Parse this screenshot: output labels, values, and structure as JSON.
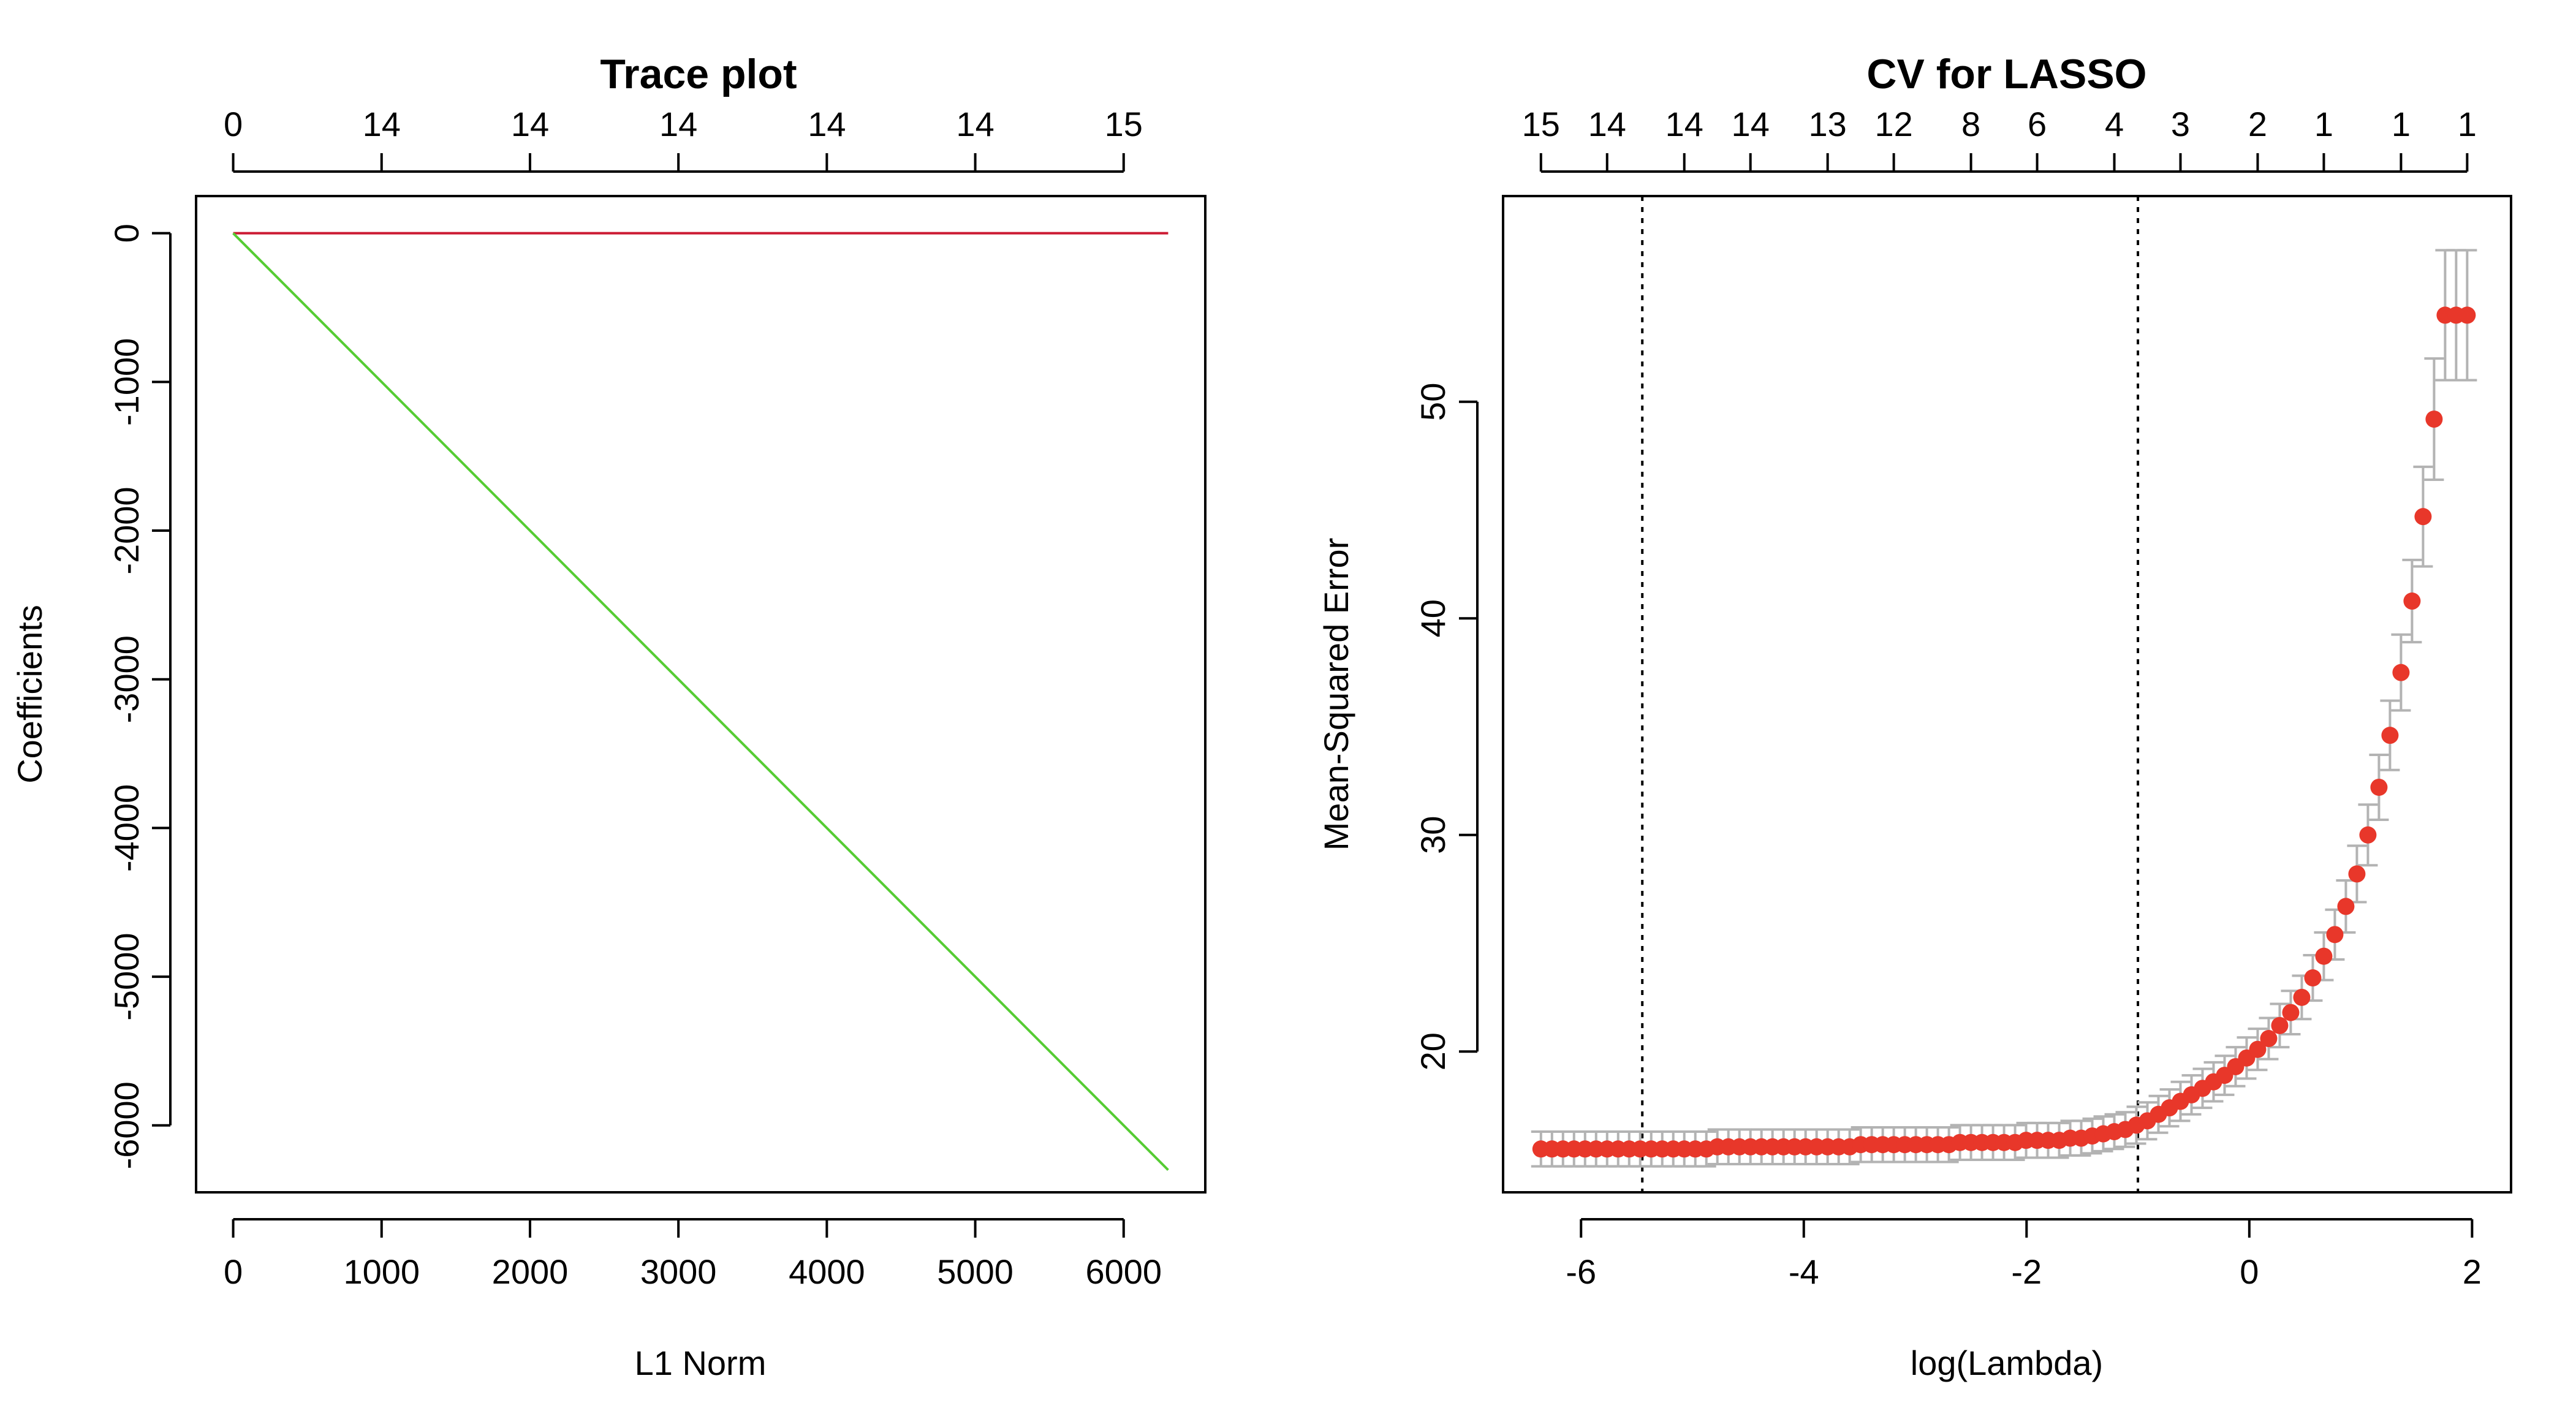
{
  "chart_data": [
    {
      "type": "line",
      "title": "Trace plot",
      "xlabel": "L1 Norm",
      "ylabel": "Coefficients",
      "xlim": [
        -250,
        6550
      ],
      "ylim": [
        -6450,
        250
      ],
      "x_ticks": [
        0,
        1000,
        2000,
        3000,
        4000,
        5000,
        6000
      ],
      "y_ticks": [
        0,
        -1000,
        -2000,
        -3000,
        -4000,
        -5000,
        -6000
      ],
      "top_axis": {
        "at": [
          0,
          1000,
          2000,
          3000,
          4000,
          5000,
          6000
        ],
        "labels": [
          "0",
          "14",
          "14",
          "14",
          "14",
          "14",
          "15"
        ]
      },
      "grid": false,
      "series": [
        {
          "color": "#cc1a33",
          "x": [
            0,
            6300
          ],
          "y": [
            0,
            0
          ]
        },
        {
          "color": "#55cc33",
          "x": [
            0,
            6300
          ],
          "y": [
            0,
            -6300
          ]
        }
      ]
    },
    {
      "type": "scatter",
      "title": "CV for LASSO",
      "xlabel": "log(Lambda)",
      "ylabel": "Mean-Squared Error",
      "xlim": [
        -6.7,
        2.35
      ],
      "ylim": [
        13.5,
        59.5
      ],
      "x_ticks": [
        -6,
        -4,
        -2,
        0,
        2
      ],
      "y_ticks": [
        20,
        30,
        40,
        50
      ],
      "top_axis": {
        "labels": [
          "15",
          "14",
          "14",
          "14",
          "13",
          "12",
          "8",
          "6",
          "4",
          "3",
          "2",
          "1",
          "1",
          "1"
        ]
      },
      "vlines": [
        -5.45,
        -1.0
      ],
      "grid": false,
      "point_color": "#e8372a",
      "errorbar_color": "#b3b3b3",
      "points": {
        "x": [
          -6.36,
          -6.261,
          -6.162,
          -6.063,
          -5.964,
          -5.865,
          -5.766,
          -5.667,
          -5.568,
          -5.469,
          -5.37,
          -5.271,
          -5.172,
          -5.073,
          -4.974,
          -4.875,
          -4.776,
          -4.677,
          -4.578,
          -4.479,
          -4.38,
          -4.281,
          -4.182,
          -4.083,
          -3.984,
          -3.885,
          -3.786,
          -3.687,
          -3.588,
          -3.489,
          -3.39,
          -3.291,
          -3.192,
          -3.093,
          -2.994,
          -2.895,
          -2.796,
          -2.697,
          -2.598,
          -2.499,
          -2.4,
          -2.301,
          -2.202,
          -2.103,
          -2.004,
          -1.905,
          -1.806,
          -1.707,
          -1.608,
          -1.509,
          -1.41,
          -1.311,
          -1.212,
          -1.113,
          -1.014,
          -0.915,
          -0.816,
          -0.717,
          -0.618,
          -0.519,
          -0.42,
          -0.321,
          -0.222,
          -0.123,
          -0.024,
          0.075,
          0.174,
          0.273,
          0.372,
          0.471,
          0.57,
          0.669,
          0.768,
          0.867,
          0.966,
          1.065,
          1.164,
          1.263,
          1.362,
          1.461,
          1.56,
          1.659,
          1.758,
          1.857,
          1.956
        ],
        "mse": [
          15.5,
          15.5,
          15.5,
          15.5,
          15.5,
          15.5,
          15.5,
          15.5,
          15.5,
          15.5,
          15.5,
          15.5,
          15.5,
          15.5,
          15.5,
          15.5,
          15.6,
          15.6,
          15.6,
          15.6,
          15.6,
          15.6,
          15.6,
          15.6,
          15.6,
          15.6,
          15.6,
          15.6,
          15.6,
          15.7,
          15.7,
          15.7,
          15.7,
          15.7,
          15.7,
          15.7,
          15.7,
          15.7,
          15.8,
          15.8,
          15.8,
          15.8,
          15.8,
          15.8,
          15.9,
          15.9,
          15.9,
          15.9,
          16.0,
          16.0,
          16.1,
          16.2,
          16.3,
          16.4,
          16.6,
          16.8,
          17.1,
          17.4,
          17.7,
          18.0,
          18.3,
          18.6,
          18.9,
          19.3,
          19.7,
          20.1,
          20.6,
          21.2,
          21.8,
          22.5,
          23.4,
          24.4,
          25.4,
          26.7,
          28.2,
          30.0,
          32.2,
          34.6,
          37.5,
          40.8,
          44.7,
          49.2,
          54.0,
          54.0,
          54.0
        ],
        "se": [
          0.8,
          0.8,
          0.8,
          0.8,
          0.8,
          0.8,
          0.8,
          0.8,
          0.8,
          0.8,
          0.8,
          0.8,
          0.8,
          0.8,
          0.8,
          0.8,
          0.8,
          0.8,
          0.8,
          0.8,
          0.8,
          0.8,
          0.8,
          0.8,
          0.8,
          0.8,
          0.8,
          0.8,
          0.8,
          0.8,
          0.8,
          0.8,
          0.8,
          0.8,
          0.8,
          0.8,
          0.8,
          0.8,
          0.8,
          0.8,
          0.8,
          0.8,
          0.8,
          0.8,
          0.8,
          0.8,
          0.8,
          0.8,
          0.8,
          0.8,
          0.8,
          0.8,
          0.8,
          0.8,
          0.85,
          0.85,
          0.85,
          0.85,
          0.9,
          0.9,
          0.9,
          0.9,
          0.9,
          0.9,
          0.95,
          0.95,
          0.95,
          1.0,
          1.0,
          1.0,
          1.05,
          1.1,
          1.15,
          1.2,
          1.3,
          1.4,
          1.5,
          1.6,
          1.75,
          1.9,
          2.3,
          2.8,
          3.0,
          3.0,
          3.0
        ]
      }
    }
  ]
}
